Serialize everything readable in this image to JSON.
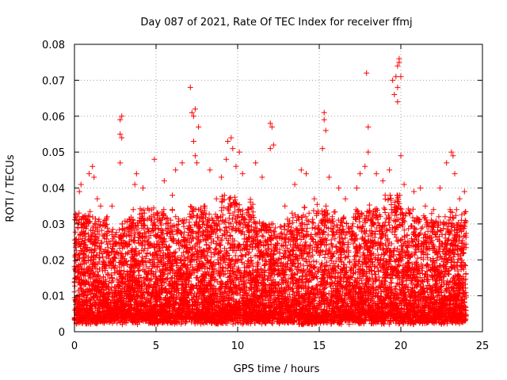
{
  "chart_data": {
    "type": "scatter",
    "title": "Day 087 of 2021, Rate Of TEC Index for receiver ffmj",
    "xlabel": "GPS time / hours",
    "ylabel": "ROTI / TECUs",
    "xlim": [
      0,
      25
    ],
    "ylim": [
      0,
      0.08
    ],
    "x_ticks": [
      0,
      5,
      10,
      15,
      20,
      25
    ],
    "x_tick_labels": [
      "0",
      "5",
      "10",
      "15",
      "20",
      "25"
    ],
    "y_ticks": [
      0,
      0.01,
      0.02,
      0.03,
      0.04,
      0.05,
      0.06,
      0.07,
      0.08
    ],
    "y_tick_labels": [
      "0",
      "0.01",
      "0.02",
      "0.03",
      "0.04",
      "0.05",
      "0.06",
      "0.07",
      "0.08"
    ],
    "grid": true,
    "marker": "+",
    "color": "#ff0000",
    "series": [
      {
        "name": "ROTI",
        "points": [
          [
            0.1,
            0.024
          ],
          [
            0.2,
            0.032
          ],
          [
            0.3,
            0.039
          ],
          [
            0.4,
            0.041
          ],
          [
            0.6,
            0.03
          ],
          [
            0.9,
            0.044
          ],
          [
            1.1,
            0.046
          ],
          [
            1.2,
            0.043
          ],
          [
            1.4,
            0.037
          ],
          [
            1.6,
            0.035
          ],
          [
            2.0,
            0.032
          ],
          [
            2.3,
            0.035
          ],
          [
            2.8,
            0.059
          ],
          [
            2.8,
            0.055
          ],
          [
            2.8,
            0.047
          ],
          [
            2.9,
            0.06
          ],
          [
            2.9,
            0.054
          ],
          [
            3.6,
            0.034
          ],
          [
            3.7,
            0.041
          ],
          [
            3.8,
            0.044
          ],
          [
            4.2,
            0.04
          ],
          [
            4.3,
            0.031
          ],
          [
            4.9,
            0.048
          ],
          [
            5.5,
            0.042
          ],
          [
            6.0,
            0.038
          ],
          [
            6.2,
            0.045
          ],
          [
            6.6,
            0.047
          ],
          [
            7.1,
            0.068
          ],
          [
            7.2,
            0.061
          ],
          [
            7.3,
            0.06
          ],
          [
            7.3,
            0.053
          ],
          [
            7.4,
            0.062
          ],
          [
            7.4,
            0.049
          ],
          [
            7.5,
            0.047
          ],
          [
            7.6,
            0.057
          ],
          [
            8.3,
            0.045
          ],
          [
            8.7,
            0.037
          ],
          [
            9.0,
            0.043
          ],
          [
            9.3,
            0.048
          ],
          [
            9.4,
            0.053
          ],
          [
            9.6,
            0.054
          ],
          [
            9.7,
            0.051
          ],
          [
            9.9,
            0.046
          ],
          [
            10.1,
            0.05
          ],
          [
            10.3,
            0.044
          ],
          [
            11.1,
            0.047
          ],
          [
            11.5,
            0.043
          ],
          [
            12.0,
            0.058
          ],
          [
            12.0,
            0.051
          ],
          [
            12.1,
            0.057
          ],
          [
            12.2,
            0.052
          ],
          [
            12.9,
            0.035
          ],
          [
            13.5,
            0.041
          ],
          [
            13.9,
            0.045
          ],
          [
            14.2,
            0.044
          ],
          [
            14.7,
            0.037
          ],
          [
            15.2,
            0.051
          ],
          [
            15.3,
            0.061
          ],
          [
            15.3,
            0.059
          ],
          [
            15.4,
            0.056
          ],
          [
            15.6,
            0.043
          ],
          [
            16.2,
            0.04
          ],
          [
            16.6,
            0.037
          ],
          [
            17.3,
            0.04
          ],
          [
            17.5,
            0.044
          ],
          [
            17.8,
            0.046
          ],
          [
            17.9,
            0.072
          ],
          [
            18.0,
            0.057
          ],
          [
            18.0,
            0.05
          ],
          [
            18.5,
            0.044
          ],
          [
            18.9,
            0.042
          ],
          [
            19.3,
            0.045
          ],
          [
            19.5,
            0.07
          ],
          [
            19.6,
            0.066
          ],
          [
            19.7,
            0.071
          ],
          [
            19.8,
            0.064
          ],
          [
            19.8,
            0.068
          ],
          [
            19.8,
            0.074
          ],
          [
            19.9,
            0.076
          ],
          [
            19.9,
            0.075
          ],
          [
            20.0,
            0.071
          ],
          [
            20.0,
            0.049
          ],
          [
            20.2,
            0.041
          ],
          [
            20.8,
            0.039
          ],
          [
            21.2,
            0.04
          ],
          [
            21.5,
            0.035
          ],
          [
            22.0,
            0.034
          ],
          [
            22.4,
            0.04
          ],
          [
            22.8,
            0.047
          ],
          [
            23.1,
            0.05
          ],
          [
            23.2,
            0.049
          ],
          [
            23.3,
            0.044
          ],
          [
            23.6,
            0.037
          ],
          [
            23.9,
            0.033
          ],
          [
            23.9,
            0.039
          ]
        ]
      }
    ],
    "background_density": {
      "description": "dense band of ROTI values underlying the visible outliers",
      "x_range": [
        0,
        24
      ],
      "hourly_envelope_max": [
        0.032,
        0.03,
        0.028,
        0.03,
        0.033,
        0.032,
        0.03,
        0.034,
        0.031,
        0.036,
        0.035,
        0.029,
        0.028,
        0.031,
        0.034,
        0.033,
        0.03,
        0.032,
        0.034,
        0.036,
        0.033,
        0.031,
        0.03,
        0.032
      ],
      "hourly_envelope_min": [
        0.005,
        0.005,
        0.006,
        0.006,
        0.005,
        0.006,
        0.005,
        0.006,
        0.005,
        0.006,
        0.006,
        0.005,
        0.006,
        0.006,
        0.005,
        0.005,
        0.006,
        0.006,
        0.005,
        0.006,
        0.005,
        0.005,
        0.006,
        0.005
      ]
    }
  }
}
